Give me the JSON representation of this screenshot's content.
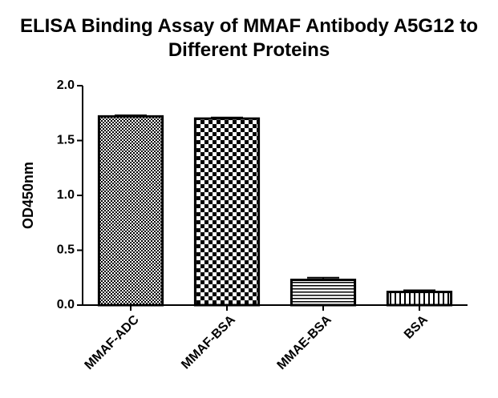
{
  "chart_data": {
    "type": "bar",
    "title": "ELISA Binding Assay of MMAF Antibody A5G12 to Different Proteins",
    "y_label": "OD450nm",
    "categories": [
      "MMAF-ADC",
      "MMAF-BSA",
      "MMAE-BSA",
      "BSA"
    ],
    "values": [
      1.72,
      1.7,
      0.23,
      0.12
    ],
    "errors": [
      0.01,
      0.01,
      0.02,
      0.015
    ],
    "color": "#000000",
    "ylim": [
      0,
      2.0
    ],
    "yticks": [
      {
        "value": 0,
        "label": "0.0"
      },
      0.5,
      {
        "value": 1,
        "label": "1.0"
      },
      1.5,
      {
        "value": 2,
        "label": "2.0"
      }
    ],
    "grid": false
  }
}
